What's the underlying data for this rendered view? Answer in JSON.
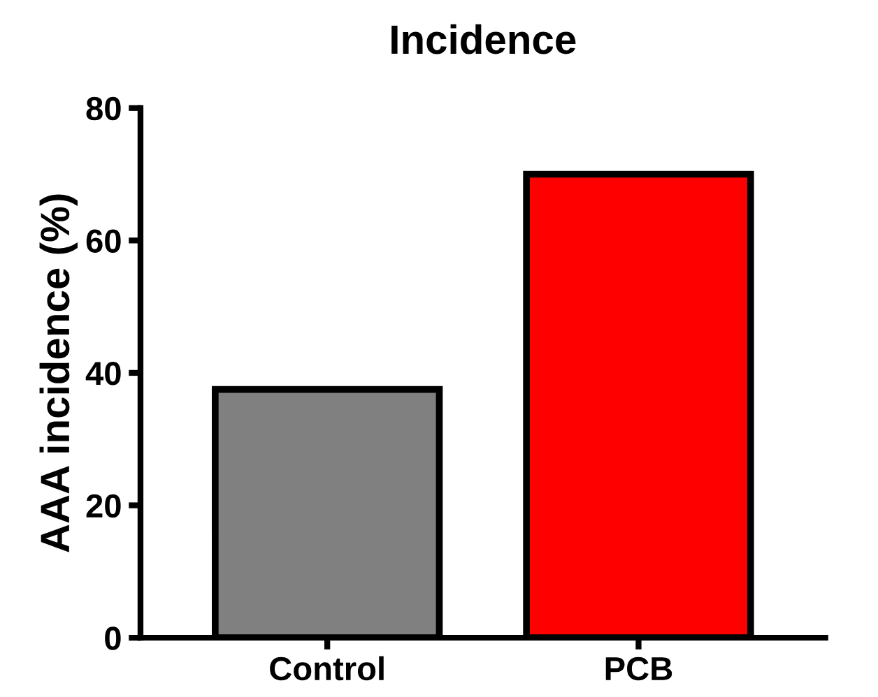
{
  "chart_data": {
    "type": "bar",
    "title": "Incidence",
    "ylabel": "AAA incidence (%)",
    "categories": [
      "Control",
      "PCB"
    ],
    "values": [
      37.5,
      70
    ],
    "colors": [
      "#808080",
      "#ff0000"
    ],
    "ylim": [
      0,
      80
    ],
    "yticks": [
      0,
      20,
      40,
      60,
      80
    ],
    "grid": false,
    "legend": false
  }
}
